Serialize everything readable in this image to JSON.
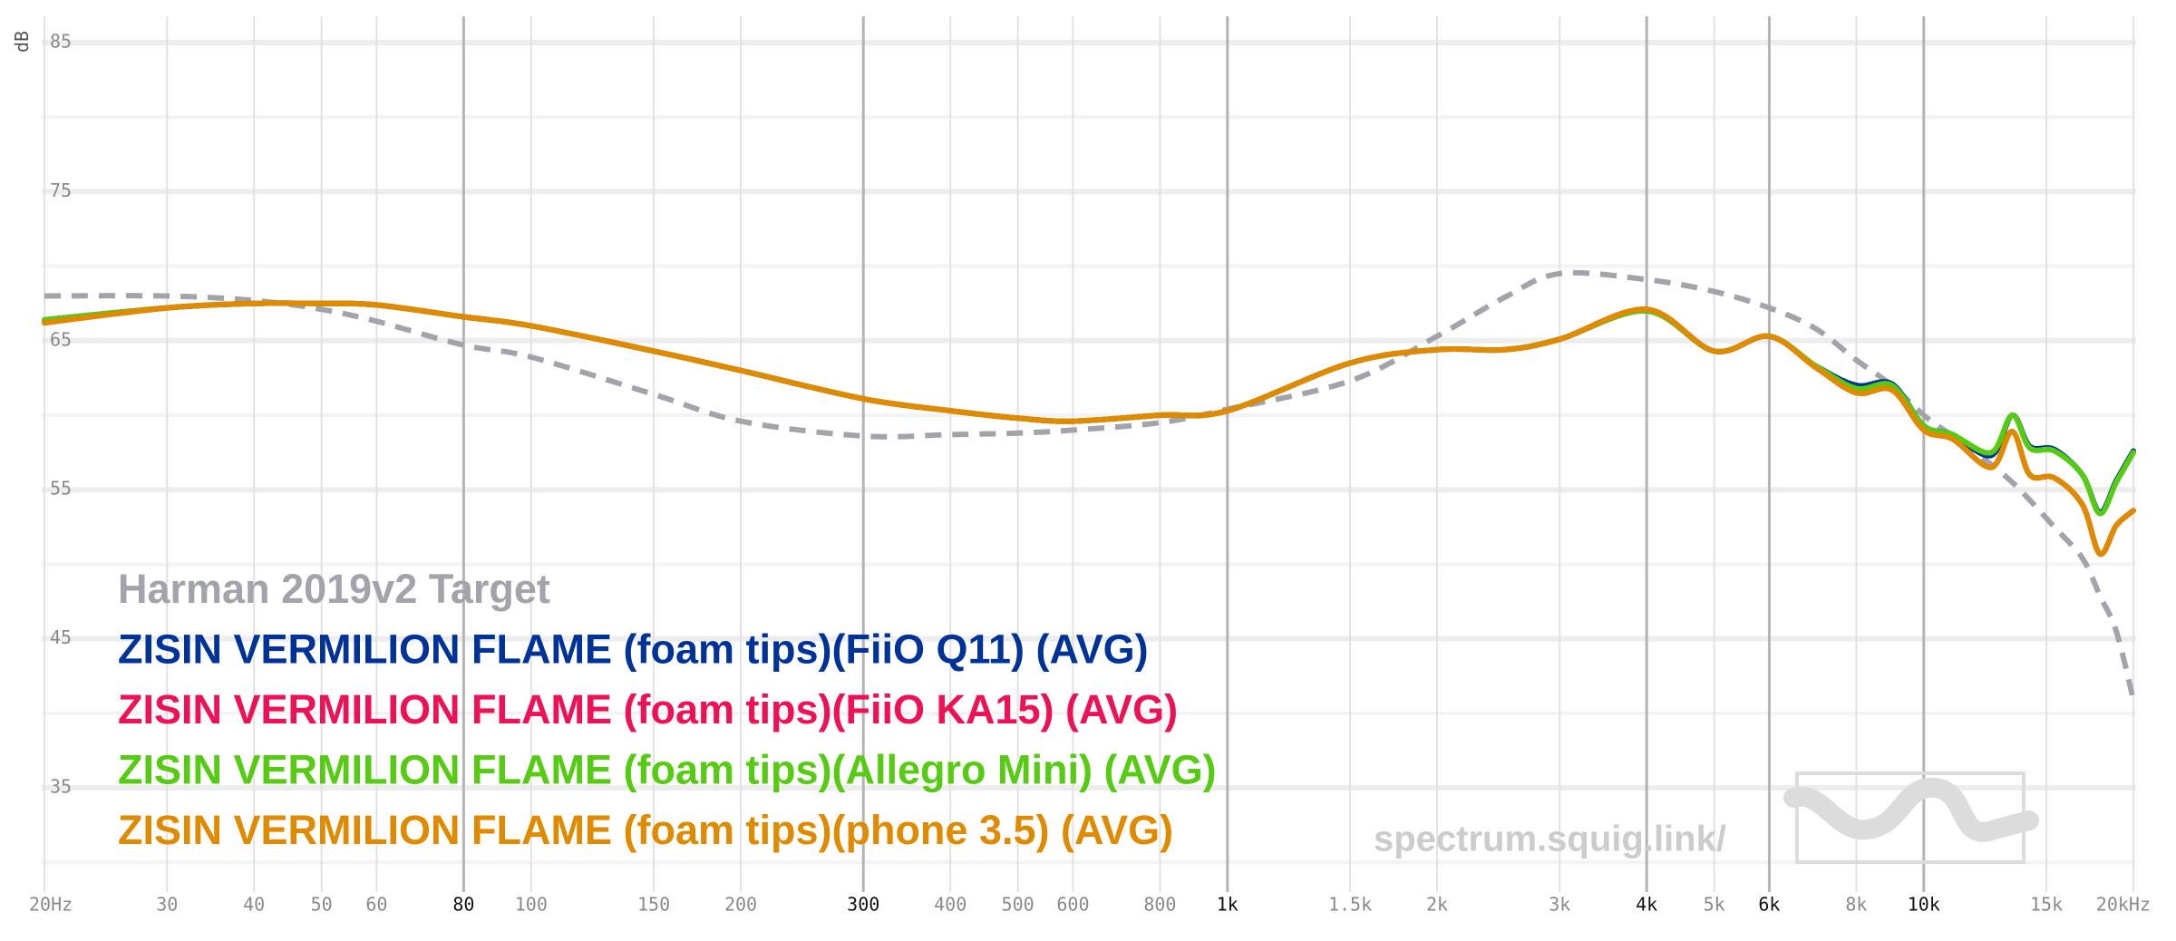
{
  "chart_data": {
    "type": "line",
    "xscale": "log",
    "y_label": "dB",
    "xlim": [
      20,
      20000
    ],
    "ylim": [
      28,
      86
    ],
    "yticks": [
      35,
      45,
      55,
      65,
      75,
      85
    ],
    "yminor": [
      30,
      40,
      50,
      60,
      70,
      80
    ],
    "xticks": [
      {
        "value": 20,
        "label": "20Hz"
      },
      30,
      40,
      50,
      60,
      80,
      100,
      150,
      200,
      300,
      400,
      500,
      600,
      800,
      {
        "value": 1000,
        "label": "1k"
      },
      {
        "value": 1500,
        "label": "1.5k"
      },
      {
        "value": 2000,
        "label": "2k"
      },
      {
        "value": 3000,
        "label": "3k"
      },
      {
        "value": 4000,
        "label": "4k"
      },
      {
        "value": 5000,
        "label": "5k"
      },
      {
        "value": 6000,
        "label": "6k"
      },
      {
        "value": 8000,
        "label": "8k"
      },
      {
        "value": 10000,
        "label": "10k"
      },
      {
        "value": 15000,
        "label": "15k"
      },
      {
        "value": 20000,
        "label": "20kHz"
      }
    ],
    "xticks_emphasis": [
      80,
      300,
      1000,
      4000,
      6000,
      10000
    ],
    "grid": true,
    "legend": "bottom-left",
    "watermark": "spectrum.squig.link/",
    "x": [
      20,
      30,
      40,
      50,
      60,
      80,
      100,
      150,
      200,
      300,
      400,
      500,
      600,
      800,
      1000,
      1500,
      2000,
      2500,
      3000,
      4000,
      5000,
      6000,
      7000,
      8000,
      9000,
      10000,
      11000,
      12500,
      13400,
      14200,
      15400,
      16900,
      17900,
      18900,
      20000
    ],
    "series": [
      {
        "name": "Harman 2019v2 Target",
        "color": "#a3a3ab",
        "dashed": true,
        "values": [
          68.0,
          68.0,
          67.7,
          67.1,
          66.3,
          64.7,
          63.9,
          61.4,
          59.6,
          58.6,
          58.7,
          58.8,
          59.0,
          59.5,
          60.4,
          62.3,
          65.3,
          67.9,
          69.5,
          69.1,
          68.3,
          67.2,
          65.8,
          63.7,
          62.0,
          60.0,
          58.6,
          56.7,
          55.5,
          54.3,
          52.5,
          50.4,
          47.9,
          45.5,
          40.9
        ]
      },
      {
        "name": "ZISIN VERMILION FLAME (foam tips)(FiiO Q11) (AVG)",
        "color": "#003399",
        "values": [
          66.4,
          67.2,
          67.5,
          67.5,
          67.4,
          66.6,
          66.0,
          64.3,
          63.0,
          61.1,
          60.3,
          59.8,
          59.6,
          60.0,
          60.3,
          63.5,
          64.4,
          64.4,
          65.1,
          67.0,
          64.3,
          65.3,
          63.3,
          62.0,
          62.1,
          59.3,
          58.7,
          57.3,
          60.0,
          57.9,
          57.7,
          56.0,
          53.5,
          55.6,
          57.6
        ]
      },
      {
        "name": "ZISIN VERMILION FLAME (foam tips)(FiiO KA15) (AVG)",
        "color": "#ee1155",
        "values": [
          66.2,
          67.2,
          67.5,
          67.5,
          67.4,
          66.6,
          66.0,
          64.3,
          63.0,
          61.1,
          60.3,
          59.8,
          59.6,
          60.0,
          60.3,
          63.5,
          64.4,
          64.4,
          65.1,
          67.1,
          64.3,
          65.3,
          63.2,
          61.5,
          61.7,
          59.0,
          58.4,
          56.5,
          58.9,
          56.0,
          55.8,
          54.0,
          50.7,
          52.6,
          53.6
        ]
      },
      {
        "name": "ZISIN VERMILION FLAME (foam tips)(Allegro Mini) (AVG)",
        "color": "#55cc11",
        "values": [
          66.4,
          67.2,
          67.5,
          67.5,
          67.4,
          66.6,
          66.0,
          64.3,
          63.0,
          61.1,
          60.3,
          59.8,
          59.6,
          60.0,
          60.3,
          63.5,
          64.4,
          64.4,
          65.1,
          67.0,
          64.3,
          65.3,
          63.3,
          61.8,
          62.0,
          59.3,
          58.7,
          57.5,
          60.0,
          57.8,
          57.6,
          56.0,
          53.4,
          55.5,
          57.5
        ]
      },
      {
        "name": "ZISIN VERMILION FLAME (foam tips)(phone 3.5) (AVG)",
        "color": "#e08a00",
        "values": [
          66.2,
          67.2,
          67.5,
          67.5,
          67.4,
          66.6,
          66.0,
          64.3,
          63.0,
          61.1,
          60.3,
          59.8,
          59.6,
          60.0,
          60.3,
          63.5,
          64.4,
          64.4,
          65.1,
          67.1,
          64.3,
          65.3,
          63.2,
          61.5,
          61.7,
          59.0,
          58.4,
          56.5,
          58.9,
          56.0,
          55.8,
          54.0,
          50.7,
          52.6,
          53.6
        ]
      }
    ]
  }
}
